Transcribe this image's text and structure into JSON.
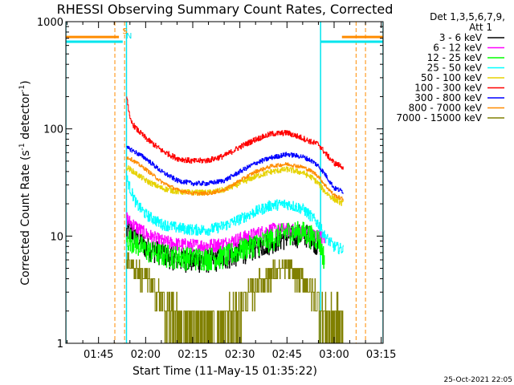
{
  "chart_data": {
    "type": "line",
    "title": "RHESSI Observing Summary Count Rates, Corrected",
    "xlabel": "Start Time (11-May-15 01:35:22)",
    "ylabel_main": "Corrected Count Rate (s",
    "ylabel_sup1": "-1",
    "ylabel_mid": " detector",
    "ylabel_sup2": "-1",
    "ylabel_end": ")",
    "y_scale": "log",
    "ylim": [
      1,
      1000
    ],
    "xlim_minutes": [
      -0.4,
      100.6
    ],
    "x_ticks": [
      {
        "m": 10.0,
        "label": "01:45"
      },
      {
        "m": 25.0,
        "label": "02:00"
      },
      {
        "m": 40.0,
        "label": "02:15"
      },
      {
        "m": 55.0,
        "label": "02:30"
      },
      {
        "m": 70.0,
        "label": "02:45"
      },
      {
        "m": 85.0,
        "label": "03:00"
      },
      {
        "m": 100.0,
        "label": "03:15"
      }
    ],
    "y_ticks": [
      {
        "v": 1,
        "label": "1"
      },
      {
        "v": 10,
        "label": "10"
      },
      {
        "v": 100,
        "label": "100"
      },
      {
        "v": 1000,
        "label": "1000"
      }
    ],
    "legend_header_1": "Det 1,3,5,6,7,9,",
    "legend_header_2": "Att 1",
    "legend_placement": "right",
    "flag_labels": [
      {
        "text": "S",
        "color": "#ff8c00",
        "m": 18.4
      },
      {
        "text": "N",
        "color": "#00e5ee",
        "m": 19.7
      }
    ],
    "attenuator_bars": {
      "orange_value": 720,
      "cyan_value": 650,
      "left_end_m": 16.5,
      "right_start_m": 87.5
    },
    "saa_intervals": [
      [
        15.2,
        18.3
      ],
      [
        92.0,
        95.0
      ]
    ],
    "night_intervals": [
      [
        -0.4,
        18.9
      ],
      [
        80.7,
        100.6
      ]
    ],
    "series": [
      {
        "name": "3 - 6 keV",
        "color": "#000000",
        "noise": 0.25,
        "points": [
          [
            18.9,
            11
          ],
          [
            20,
            11.5
          ],
          [
            25,
            8
          ],
          [
            30,
            7
          ],
          [
            35,
            6.2
          ],
          [
            40,
            6
          ],
          [
            45,
            6
          ],
          [
            50,
            6.3
          ],
          [
            55,
            7
          ],
          [
            60,
            8
          ],
          [
            65,
            9
          ],
          [
            70,
            10
          ],
          [
            75,
            10.5
          ],
          [
            78,
            10
          ],
          [
            80,
            8
          ]
        ]
      },
      {
        "name": "6 - 12 keV",
        "color": "#ff00ff",
        "noise": 0.15,
        "points": [
          [
            18.9,
            15
          ],
          [
            20,
            13.5
          ],
          [
            25,
            10.5
          ],
          [
            30,
            9
          ],
          [
            35,
            8.4
          ],
          [
            40,
            8.2
          ],
          [
            45,
            8.2
          ],
          [
            50,
            8.5
          ],
          [
            55,
            9.5
          ],
          [
            60,
            10.5
          ],
          [
            65,
            11.5
          ],
          [
            70,
            11.5
          ],
          [
            75,
            11
          ],
          [
            78,
            10.5
          ],
          [
            80,
            10
          ],
          [
            82,
            9.5
          ]
        ]
      },
      {
        "name": "12 - 25 keV",
        "color": "#00ff00",
        "noise": 0.25,
        "points": [
          [
            18.9,
            9
          ],
          [
            20,
            9.5
          ],
          [
            25,
            7.5
          ],
          [
            30,
            6.8
          ],
          [
            35,
            6.5
          ],
          [
            40,
            6.3
          ],
          [
            45,
            6.3
          ],
          [
            50,
            6.5
          ],
          [
            55,
            7.5
          ],
          [
            60,
            8.5
          ],
          [
            65,
            9.5
          ],
          [
            70,
            11
          ],
          [
            75,
            11
          ],
          [
            78,
            10
          ],
          [
            80,
            9.5
          ],
          [
            82,
            6
          ]
        ]
      },
      {
        "name": "25 - 50 keV",
        "color": "#00ffff",
        "noise": 0.12,
        "points": [
          [
            18.9,
            35
          ],
          [
            20,
            28
          ],
          [
            22,
            20
          ],
          [
            25,
            16
          ],
          [
            30,
            13
          ],
          [
            35,
            12
          ],
          [
            40,
            11.5
          ],
          [
            45,
            11.5
          ],
          [
            50,
            12.5
          ],
          [
            55,
            14.5
          ],
          [
            60,
            17
          ],
          [
            65,
            19.5
          ],
          [
            70,
            20
          ],
          [
            75,
            18
          ],
          [
            78,
            15
          ],
          [
            80,
            13
          ],
          [
            82,
            10
          ],
          [
            85,
            8
          ],
          [
            88,
            7.5
          ]
        ]
      },
      {
        "name": "50 - 100 keV",
        "color": "#e6d200",
        "noise": 0.06,
        "points": [
          [
            18.9,
            44
          ],
          [
            20,
            42
          ],
          [
            25,
            33
          ],
          [
            30,
            28
          ],
          [
            35,
            26
          ],
          [
            40,
            25.5
          ],
          [
            45,
            25.5
          ],
          [
            50,
            27
          ],
          [
            55,
            31
          ],
          [
            60,
            36
          ],
          [
            65,
            40
          ],
          [
            70,
            42
          ],
          [
            75,
            39
          ],
          [
            78,
            35
          ],
          [
            80,
            31
          ],
          [
            82,
            26
          ],
          [
            85,
            22
          ],
          [
            88,
            20
          ]
        ]
      },
      {
        "name": "100 - 300 keV",
        "color": "#ff0000",
        "noise": 0.06,
        "points": [
          [
            18.9,
            210
          ],
          [
            20,
            120
          ],
          [
            22,
            100
          ],
          [
            25,
            82
          ],
          [
            30,
            63
          ],
          [
            35,
            53
          ],
          [
            40,
            50
          ],
          [
            45,
            51
          ],
          [
            50,
            56
          ],
          [
            55,
            68
          ],
          [
            60,
            80
          ],
          [
            65,
            90
          ],
          [
            70,
            92
          ],
          [
            75,
            82
          ],
          [
            78,
            75
          ],
          [
            80,
            72
          ],
          [
            82,
            60
          ],
          [
            85,
            48
          ],
          [
            88,
            44
          ]
        ]
      },
      {
        "name": "300 - 800 keV",
        "color": "#0000ff",
        "noise": 0.05,
        "points": [
          [
            18.9,
            66
          ],
          [
            20,
            65
          ],
          [
            25,
            53
          ],
          [
            30,
            40
          ],
          [
            35,
            33
          ],
          [
            40,
            31
          ],
          [
            45,
            31
          ],
          [
            50,
            33
          ],
          [
            55,
            40
          ],
          [
            60,
            48
          ],
          [
            65,
            54
          ],
          [
            70,
            58
          ],
          [
            75,
            55
          ],
          [
            78,
            50
          ],
          [
            80,
            45
          ],
          [
            82,
            38
          ],
          [
            85,
            28
          ],
          [
            88,
            26
          ]
        ]
      },
      {
        "name": "800 - 7000 keV",
        "color": "#ff8c00",
        "noise": 0.04,
        "points": [
          [
            18.9,
            54
          ],
          [
            20,
            53
          ],
          [
            25,
            42
          ],
          [
            30,
            32
          ],
          [
            35,
            27
          ],
          [
            40,
            25
          ],
          [
            45,
            25
          ],
          [
            50,
            27
          ],
          [
            55,
            33
          ],
          [
            60,
            40
          ],
          [
            65,
            45
          ],
          [
            70,
            47
          ],
          [
            75,
            44
          ],
          [
            78,
            40
          ],
          [
            80,
            36
          ],
          [
            82,
            30
          ],
          [
            85,
            24
          ],
          [
            88,
            22
          ]
        ]
      },
      {
        "name": "7000 - 15000 keV",
        "color": "#808000",
        "noise": 0.0,
        "points": [
          [
            18.9,
            6
          ],
          [
            22,
            5
          ],
          [
            25,
            4
          ],
          [
            28,
            3
          ],
          [
            32,
            2
          ],
          [
            35,
            1.5
          ],
          [
            40,
            1.3
          ],
          [
            45,
            1.3
          ],
          [
            50,
            1.5
          ],
          [
            55,
            2
          ],
          [
            60,
            3.5
          ],
          [
            65,
            4.5
          ],
          [
            70,
            5
          ],
          [
            75,
            4
          ],
          [
            78,
            3
          ],
          [
            80,
            2.5
          ],
          [
            82,
            1.7
          ],
          [
            88,
            1.5
          ]
        ]
      }
    ]
  },
  "footer": {
    "timestamp": "25-Oct-2021 22:05"
  }
}
